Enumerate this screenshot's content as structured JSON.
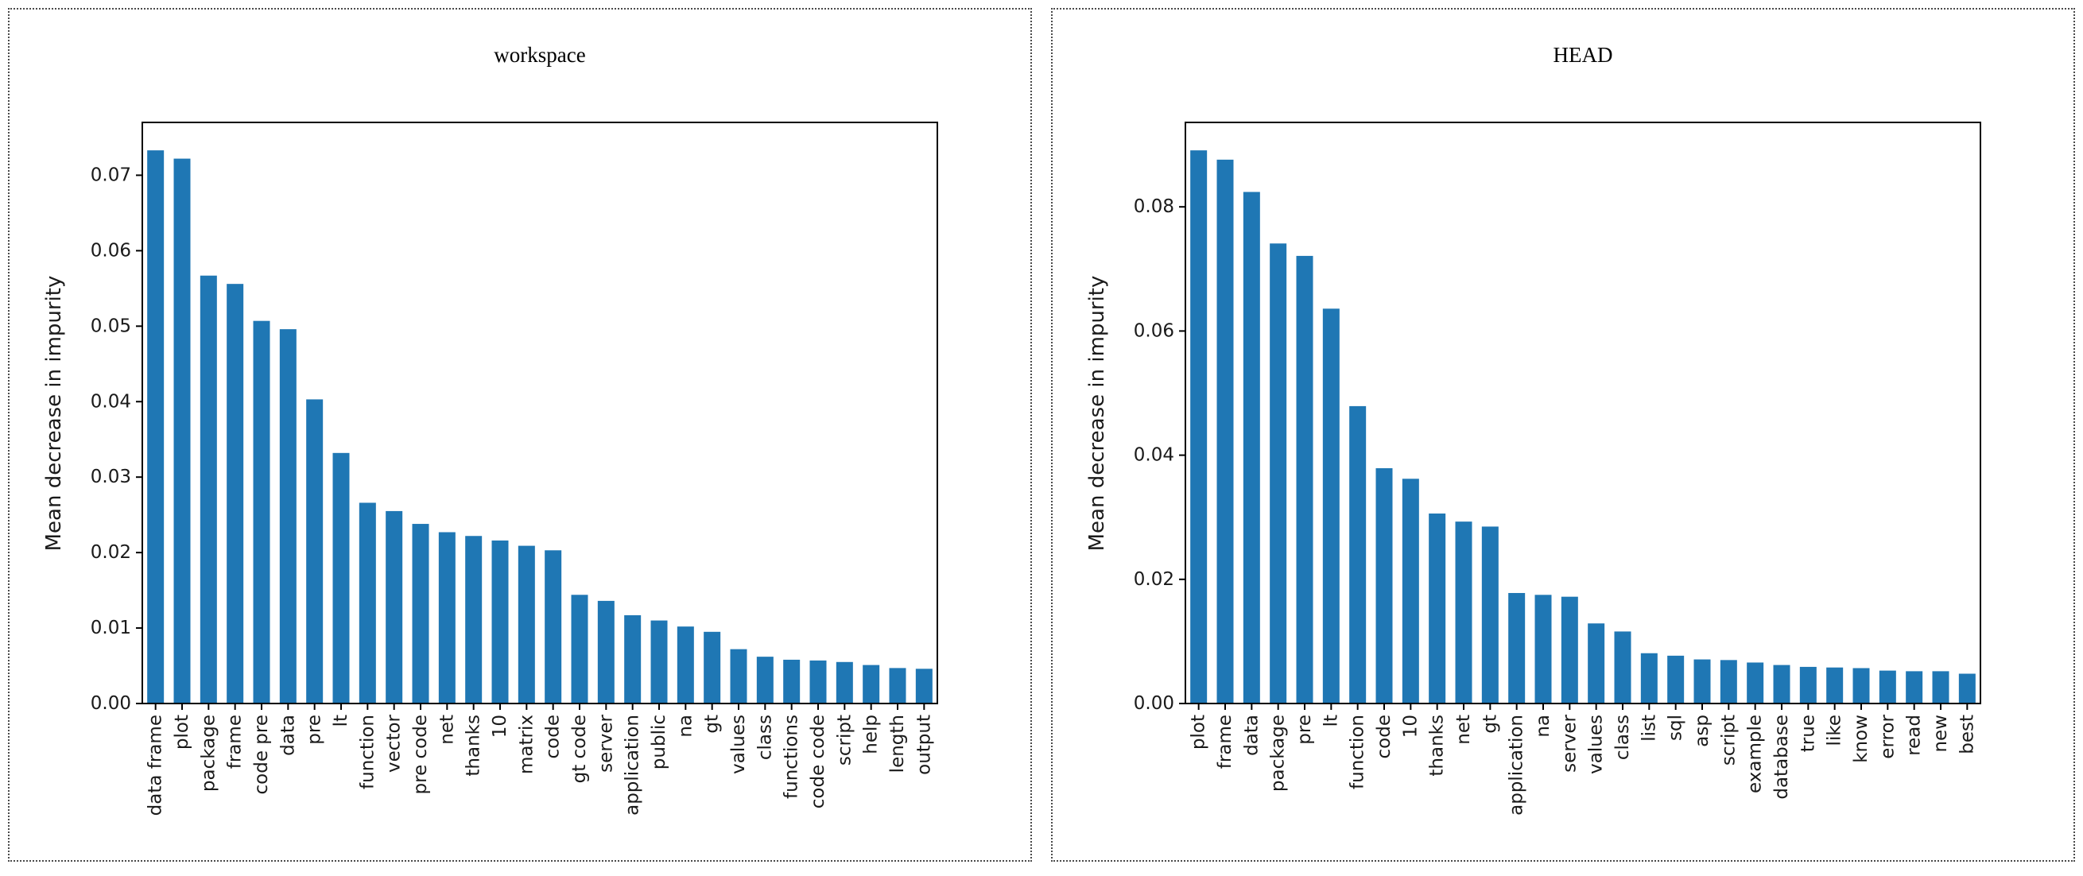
{
  "page": {
    "background": "#ffffff",
    "panel_border_color": "#4a4a4a",
    "axis_color": "#000000",
    "text_color": "#1a1a1a"
  },
  "chart_data": [
    {
      "type": "bar",
      "title": "workspace",
      "xlabel": "",
      "ylabel": "Mean decrease in impurity",
      "bar_color": "#1f77b4",
      "grid": false,
      "legend": "none",
      "ylim": [
        0,
        0.077
      ],
      "yticks": [
        0.0,
        0.01,
        0.02,
        0.03,
        0.04,
        0.05,
        0.06,
        0.07
      ],
      "ytick_labels": [
        "0.00",
        "0.01",
        "0.02",
        "0.03",
        "0.04",
        "0.05",
        "0.06",
        "0.07"
      ],
      "categories": [
        "data frame",
        "plot",
        "package",
        "frame",
        "code pre",
        "data",
        "pre",
        "lt",
        "function",
        "vector",
        "pre code",
        "net",
        "thanks",
        "10",
        "matrix",
        "code",
        "gt code",
        "server",
        "application",
        "public",
        "na",
        "gt",
        "values",
        "class",
        "functions",
        "code code",
        "script",
        "help",
        "length",
        "output"
      ],
      "values": [
        0.0733,
        0.0722,
        0.0567,
        0.0556,
        0.0507,
        0.0496,
        0.0403,
        0.0332,
        0.0266,
        0.0255,
        0.0238,
        0.0227,
        0.0222,
        0.0216,
        0.0209,
        0.0203,
        0.0144,
        0.0136,
        0.0117,
        0.011,
        0.0102,
        0.0095,
        0.0072,
        0.0062,
        0.0058,
        0.0057,
        0.0055,
        0.0051,
        0.0047,
        0.0046
      ]
    },
    {
      "type": "bar",
      "title": "HEAD",
      "xlabel": "",
      "ylabel": "Mean decrease in impurity",
      "bar_color": "#1f77b4",
      "grid": false,
      "legend": "none",
      "ylim": [
        0,
        0.0936
      ],
      "yticks": [
        0.0,
        0.02,
        0.04,
        0.06,
        0.08
      ],
      "ytick_labels": [
        "0.00",
        "0.02",
        "0.04",
        "0.06",
        "0.08"
      ],
      "categories": [
        "plot",
        "frame",
        "data",
        "package",
        "pre",
        "lt",
        "function",
        "code",
        "10",
        "thanks",
        "net",
        "gt",
        "application",
        "na",
        "server",
        "values",
        "class",
        "list",
        "sql",
        "asp",
        "script",
        "example",
        "database",
        "true",
        "like",
        "know",
        "error",
        "read",
        "new",
        "best"
      ],
      "values": [
        0.0891,
        0.0876,
        0.0824,
        0.0741,
        0.0721,
        0.0636,
        0.0479,
        0.0379,
        0.0362,
        0.0306,
        0.0293,
        0.0285,
        0.0178,
        0.0175,
        0.0172,
        0.0129,
        0.0116,
        0.0081,
        0.0077,
        0.0071,
        0.007,
        0.0066,
        0.0062,
        0.0059,
        0.0058,
        0.0057,
        0.0053,
        0.0052,
        0.0052,
        0.0048
      ]
    }
  ]
}
